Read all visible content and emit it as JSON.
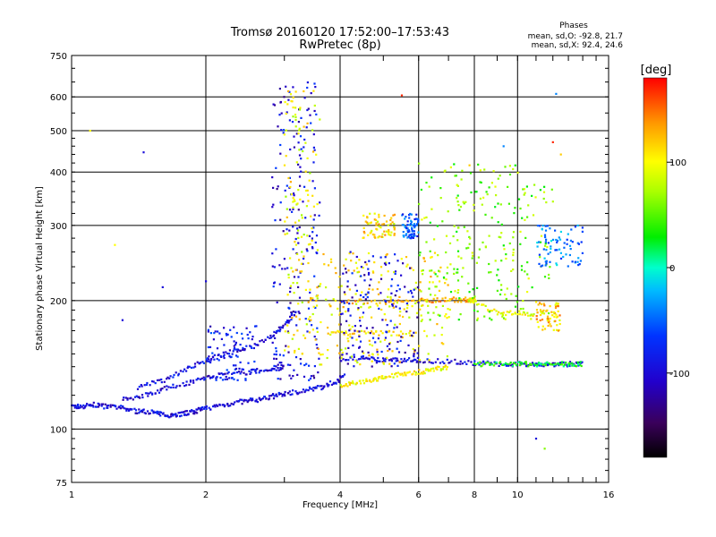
{
  "title_line1": "Tromsø 20160120 17:52:00–17:53:43",
  "title_line2": "RwPretec (8p)",
  "phases": {
    "heading": "Phases",
    "o_stats": "mean, sd,O: -92.8, 21.7",
    "x_stats": "mean, sd,X: 92.4, 24.6"
  },
  "colorbar": {
    "unit": "[deg]",
    "ticks": [
      "100",
      "0",
      "-100"
    ],
    "tick_values": [
      100,
      0,
      -100
    ],
    "range": [
      -180,
      180
    ]
  },
  "chart_data": {
    "type": "scatter",
    "xlabel": "Frequency [MHz]",
    "ylabel": "Stationary phase Virtual Height [km]",
    "xscale": "log",
    "yscale": "log",
    "xlim": [
      1,
      16
    ],
    "ylim": [
      75,
      750
    ],
    "xticks": [
      1,
      2,
      4,
      6,
      8,
      10,
      16
    ],
    "xtick_labels": [
      "1",
      "2",
      "4",
      "6",
      "8",
      "10",
      "16"
    ],
    "yticks": [
      75,
      100,
      200,
      300,
      400,
      500,
      600,
      750
    ],
    "ytick_labels": [
      "75",
      "100",
      "200",
      "300",
      "400",
      "500",
      "600",
      "750"
    ],
    "grid": true,
    "point_color_scale": "rainbow (phase, deg)",
    "traces": [
      {
        "points": [
          [
            1.0,
            113
          ],
          [
            1.05,
            113
          ],
          [
            1.12,
            114
          ],
          [
            1.2,
            113
          ],
          [
            1.3,
            112
          ],
          [
            1.4,
            110
          ],
          [
            1.5,
            110
          ],
          [
            1.6,
            108
          ],
          [
            1.7,
            108
          ],
          [
            1.8,
            109
          ],
          [
            1.9,
            110
          ],
          [
            2.0,
            112
          ],
          [
            2.2,
            114
          ],
          [
            2.4,
            116
          ],
          [
            2.6,
            117
          ],
          [
            2.8,
            119
          ],
          [
            3.0,
            121
          ],
          [
            3.3,
            123
          ],
          [
            3.6,
            125
          ],
          [
            3.9,
            129
          ],
          [
            4.1,
            134
          ]
        ],
        "phase": -100
      },
      {
        "points": [
          [
            1.3,
            117
          ],
          [
            1.45,
            120
          ],
          [
            1.6,
            124
          ],
          [
            1.8,
            128
          ],
          [
            2.0,
            132
          ],
          [
            2.2,
            134
          ],
          [
            2.5,
            136
          ],
          [
            2.8,
            138
          ],
          [
            3.0,
            140
          ]
        ],
        "phase": -100
      },
      {
        "points": [
          [
            1.4,
            125
          ],
          [
            1.6,
            130
          ],
          [
            1.8,
            138
          ],
          [
            2.0,
            145
          ],
          [
            2.2,
            150
          ],
          [
            2.5,
            155
          ],
          [
            2.8,
            165
          ],
          [
            3.0,
            175
          ],
          [
            3.2,
            190
          ]
        ],
        "phase": -95
      },
      {
        "points": [
          [
            4.0,
            127
          ],
          [
            4.3,
            128
          ],
          [
            4.7,
            130
          ],
          [
            5.0,
            132
          ],
          [
            5.5,
            135
          ],
          [
            6.0,
            136
          ],
          [
            6.5,
            138
          ],
          [
            7.0,
            140
          ]
        ],
        "phase": 100
      },
      {
        "points": [
          [
            4.0,
            146
          ],
          [
            4.5,
            146
          ],
          [
            5.0,
            145
          ],
          [
            5.5,
            145
          ],
          [
            6.0,
            145
          ],
          [
            7.0,
            144
          ],
          [
            8.0,
            143
          ],
          [
            9.0,
            142
          ],
          [
            10.0,
            142
          ],
          [
            11.0,
            142
          ],
          [
            12.0,
            142
          ],
          [
            13.0,
            142
          ],
          [
            14.0,
            142
          ]
        ],
        "phase": -100
      },
      {
        "points": [
          [
            8.0,
            142
          ],
          [
            9.0,
            142
          ],
          [
            10.0,
            142
          ],
          [
            11.0,
            142
          ],
          [
            12.0,
            142
          ],
          [
            13.0,
            142
          ],
          [
            14.0,
            142
          ]
        ],
        "phase": 30
      },
      {
        "points": [
          [
            3.8,
            168
          ],
          [
            4.2,
            168
          ],
          [
            5.0,
            168
          ],
          [
            6.0,
            167
          ]
        ],
        "phase": 110
      },
      {
        "points": [
          [
            4.0,
            199
          ],
          [
            5.0,
            199
          ],
          [
            6.0,
            200
          ],
          [
            6.8,
            201
          ],
          [
            7.5,
            201
          ],
          [
            8.0,
            201
          ]
        ],
        "phase": 130
      },
      {
        "points": [
          [
            7.8,
            200
          ],
          [
            8.0,
            200
          ],
          [
            9.0,
            187
          ],
          [
            10.0,
            187
          ],
          [
            11.0,
            185
          ]
        ],
        "phase": 95
      }
    ],
    "clusters": [
      {
        "x_range": [
          2.8,
          3.6
        ],
        "y_range": [
          130,
          650
        ],
        "phase": -100
      },
      {
        "x_range": [
          3.0,
          3.6
        ],
        "y_range": [
          150,
          620
        ],
        "phase": 100
      },
      {
        "x_range": [
          2.0,
          2.6
        ],
        "y_range": [
          130,
          175
        ],
        "phase": -90
      },
      {
        "x_range": [
          4.5,
          5.3
        ],
        "y_range": [
          280,
          320
        ],
        "phase": 110
      },
      {
        "x_range": [
          5.5,
          6.0
        ],
        "y_range": [
          280,
          320
        ],
        "phase": -60
      },
      {
        "x_range": [
          3.6,
          7.0
        ],
        "y_range": [
          140,
          260
        ],
        "phase": 105
      },
      {
        "x_range": [
          4.0,
          6.0
        ],
        "y_range": [
          140,
          260
        ],
        "phase": -100
      },
      {
        "x_range": [
          6.0,
          12.0
        ],
        "y_range": [
          180,
          420
        ],
        "phase": 60
      },
      {
        "x_range": [
          11.0,
          14.0
        ],
        "y_range": [
          240,
          300
        ],
        "phase": -40
      },
      {
        "x_range": [
          11.0,
          12.5
        ],
        "y_range": [
          170,
          200
        ],
        "phase": 120
      }
    ],
    "isolated_points": [
      {
        "x": 1.1,
        "y": 500,
        "phase": 100
      },
      {
        "x": 1.45,
        "y": 445,
        "phase": -100
      },
      {
        "x": 1.25,
        "y": 270,
        "phase": 100
      },
      {
        "x": 1.6,
        "y": 215,
        "phase": -100
      },
      {
        "x": 2.0,
        "y": 222,
        "phase": -100
      },
      {
        "x": 1.3,
        "y": 180,
        "phase": -100
      },
      {
        "x": 12.2,
        "y": 610,
        "phase": -40
      },
      {
        "x": 12.0,
        "y": 470,
        "phase": 170
      },
      {
        "x": 12.5,
        "y": 440,
        "phase": 120
      },
      {
        "x": 11.0,
        "y": 95,
        "phase": -100
      },
      {
        "x": 11.5,
        "y": 90,
        "phase": 60
      },
      {
        "x": 5.5,
        "y": 605,
        "phase": 170
      },
      {
        "x": 9.3,
        "y": 460,
        "phase": -40
      },
      {
        "x": 7.8,
        "y": 415,
        "phase": 120
      }
    ]
  }
}
